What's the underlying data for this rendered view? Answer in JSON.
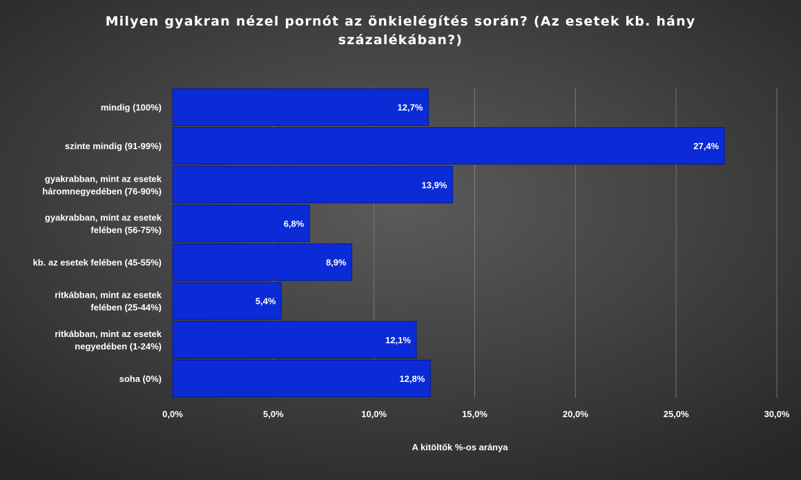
{
  "chart_data": {
    "type": "bar",
    "orientation": "horizontal",
    "title": "Milyen gyakran nézel pornót az önkielégítés során? (Az esetek kb. hány százalékában?)",
    "xlabel": "A kitöltők %-os aránya",
    "ylabel": "",
    "categories": [
      "mindig (100%)",
      "szinte mindig (91-99%)",
      "gyakrabban, mint az esetek háromnegyedében (76-90%)",
      "gyakrabban, mint az esetek felében (56-75%)",
      "kb. az esetek felében (45-55%)",
      "ritkábban, mint az esetek felében (25-44%)",
      "ritkábban, mint az esetek negyedében (1-24%)",
      "soha (0%)"
    ],
    "category_lines": [
      [
        "mindig (100%)"
      ],
      [
        "szinte mindig (91-99%)"
      ],
      [
        "gyakrabban, mint az esetek",
        "háromnegyedében (76-90%)"
      ],
      [
        "gyakrabban, mint az esetek",
        "felében (56-75%)"
      ],
      [
        "kb. az esetek felében (45-55%)"
      ],
      [
        "ritkábban, mint az esetek",
        "felében (25-44%)"
      ],
      [
        "ritkábban, mint az esetek",
        "negyedében (1-24%)"
      ],
      [
        "soha (0%)"
      ]
    ],
    "values": [
      12.7,
      27.4,
      13.9,
      6.8,
      8.9,
      5.4,
      12.1,
      12.8
    ],
    "data_labels": [
      "12,7%",
      "27,4%",
      "13,9%",
      "6,8%",
      "8,9%",
      "5,4%",
      "12,1%",
      "12,8%"
    ],
    "xticks": [
      0,
      5,
      10,
      15,
      20,
      25,
      30
    ],
    "xtick_labels": [
      "0,0%",
      "5,0%",
      "10,0%",
      "15,0%",
      "20,0%",
      "25,0%",
      "30,0%"
    ],
    "xlim": [
      0,
      30
    ],
    "grid": true,
    "legend": "none",
    "colors": {
      "bar": "#0a2bd6",
      "bar_border": "#071a8f",
      "grid": "#8a8a8a",
      "text": "#ffffff"
    }
  }
}
